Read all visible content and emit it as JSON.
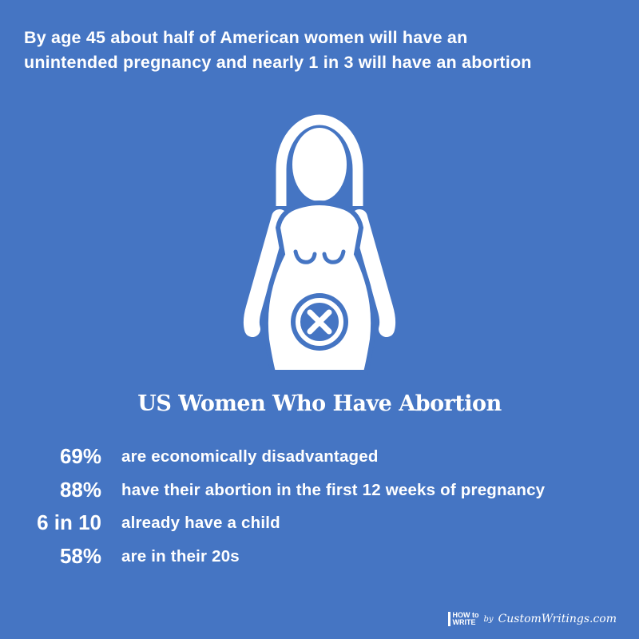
{
  "header": {
    "title_lines": [
      "By age 45 about half of American women will have an",
      "unintended pregnancy and nearly 1 in 3 will have an abortion"
    ]
  },
  "section": {
    "heading": "US Women Who Have Abortion",
    "stats": [
      {
        "value": "69%",
        "text": "are economically disadvantaged"
      },
      {
        "value": "88%",
        "text": "have their abortion in the first 12 weeks of pregnancy"
      },
      {
        "value": "6 in 10",
        "text": "already have a child"
      },
      {
        "value": "58%",
        "text": "are in their 20s"
      }
    ]
  },
  "footer": {
    "logo_lines": [
      "HOW to",
      "WRITE"
    ],
    "by": "by",
    "site": "CustomWritings.com"
  }
}
